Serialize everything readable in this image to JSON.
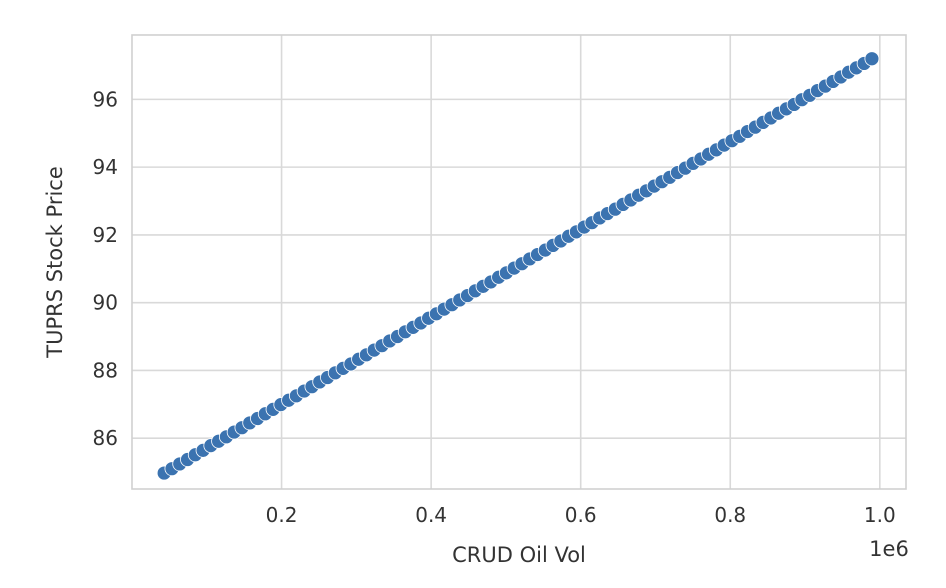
{
  "chart_data": {
    "type": "scatter",
    "title": "",
    "xlabel": "CRUD Oil Vol",
    "ylabel": "TUPRS Stock Price",
    "x_offset_label": "1e6",
    "xlim": [
      0.0,
      1.035
    ],
    "ylim": [
      84.5,
      97.9
    ],
    "xticks": [
      0.2,
      0.4,
      0.6,
      0.8,
      1.0
    ],
    "xtick_labels": [
      "0.2",
      "0.4",
      "0.6",
      "0.8",
      "1.0"
    ],
    "yticks": [
      86,
      88,
      90,
      92,
      94,
      96
    ],
    "ytick_labels": [
      "86",
      "88",
      "90",
      "92",
      "94",
      "96"
    ],
    "grid": true,
    "point_color": "#3b73b0",
    "series": [
      {
        "x": [
          0.043,
          0.0534,
          0.0638,
          0.0742,
          0.0846,
          0.095,
          0.1054,
          0.1158,
          0.1262,
          0.1366,
          0.147,
          0.1574,
          0.1678,
          0.1782,
          0.1886,
          0.199,
          0.2094,
          0.2198,
          0.2302,
          0.2406,
          0.251,
          0.2614,
          0.2718,
          0.2822,
          0.2926,
          0.303,
          0.3134,
          0.3238,
          0.3342,
          0.3446,
          0.355,
          0.3654,
          0.3758,
          0.3862,
          0.3966,
          0.407,
          0.4174,
          0.4278,
          0.4382,
          0.4486,
          0.459,
          0.4694,
          0.4798,
          0.4902,
          0.5006,
          0.511,
          0.5214,
          0.5318,
          0.5422,
          0.5526,
          0.563,
          0.5734,
          0.5838,
          0.5942,
          0.6046,
          0.615,
          0.6254,
          0.6358,
          0.6462,
          0.6566,
          0.667,
          0.6774,
          0.6878,
          0.6982,
          0.7086,
          0.719,
          0.7294,
          0.7398,
          0.7502,
          0.7606,
          0.771,
          0.7814,
          0.7918,
          0.8022,
          0.8126,
          0.823,
          0.8334,
          0.8438,
          0.8542,
          0.8646,
          0.875,
          0.8854,
          0.8958,
          0.9062,
          0.9166,
          0.927,
          0.9374,
          0.9478,
          0.9582,
          0.9686,
          0.979,
          0.9894
        ],
        "y": [
          84.97,
          85.1,
          85.24,
          85.37,
          85.51,
          85.64,
          85.78,
          85.91,
          86.04,
          86.18,
          86.31,
          86.45,
          86.58,
          86.72,
          86.85,
          86.99,
          87.12,
          87.25,
          87.39,
          87.52,
          87.66,
          87.79,
          87.93,
          88.06,
          88.19,
          88.33,
          88.46,
          88.6,
          88.73,
          88.87,
          89.0,
          89.14,
          89.27,
          89.4,
          89.54,
          89.67,
          89.81,
          89.94,
          90.08,
          90.21,
          90.35,
          90.48,
          90.61,
          90.75,
          90.88,
          91.02,
          91.15,
          91.29,
          91.42,
          91.55,
          91.69,
          91.82,
          91.96,
          92.09,
          92.23,
          92.36,
          92.5,
          92.63,
          92.76,
          92.9,
          93.03,
          93.17,
          93.3,
          93.44,
          93.57,
          93.7,
          93.84,
          93.97,
          94.11,
          94.24,
          94.38,
          94.51,
          94.65,
          94.78,
          94.91,
          95.05,
          95.18,
          95.32,
          95.45,
          95.59,
          95.72,
          95.85,
          95.99,
          96.12,
          96.26,
          96.39,
          96.53,
          96.66,
          96.8,
          96.93,
          97.06,
          97.2
        ]
      }
    ]
  }
}
